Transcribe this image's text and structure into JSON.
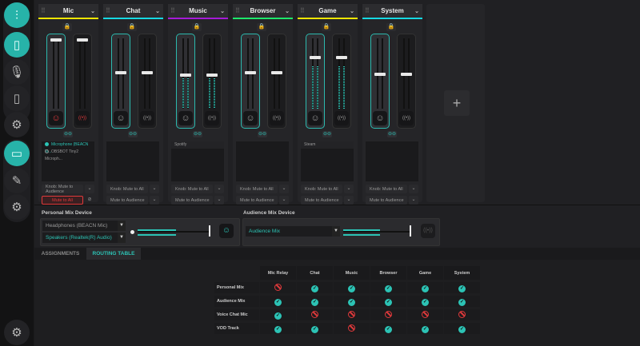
{
  "sidebar": {
    "items": [
      {
        "icon": "mixer-sliders-icon",
        "active": true
      },
      {
        "icon": "device-panel-icon",
        "active": true
      },
      {
        "icon": "mic-rotate-icon",
        "active": false
      },
      {
        "icon": "device-light-icon",
        "active": false
      },
      {
        "icon": "gear-icon",
        "active": false
      },
      {
        "icon": "keyboard-device-icon",
        "active": true
      },
      {
        "icon": "edit-icon",
        "active": false
      },
      {
        "icon": "gear-icon",
        "active": false
      },
      {
        "icon": "settings-gear-icon",
        "active": false
      }
    ]
  },
  "channels": [
    {
      "name": "Mic",
      "color": "#f2e600",
      "personal_level": 0.98,
      "stream_level": 0.98,
      "personal_meter": 0,
      "stream_meter": 0,
      "muted": true,
      "apps": [
        "Microphone (BEACN M...",
        "OBSBOT Tiny2 Microph..."
      ],
      "knob": "Knob: Mute to Audience",
      "mute": "Mute to All"
    },
    {
      "name": "Chat",
      "color": "#16d9e3",
      "personal_level": 0.5,
      "stream_level": 0.5,
      "personal_meter": 0,
      "stream_meter": 0,
      "apps": [],
      "knob": "Knob: Mute to All",
      "mute": "Mute to Audience"
    },
    {
      "name": "Music",
      "color": "#a51bd8",
      "personal_level": 0.47,
      "stream_level": 0.47,
      "personal_meter": 0.43,
      "stream_meter": 0.43,
      "apps": [
        "Spotify"
      ],
      "knob": "Knob: Mute to All",
      "mute": "Mute to Audience"
    },
    {
      "name": "Browser",
      "color": "#1de86a",
      "personal_level": 0.5,
      "stream_level": 0.5,
      "personal_meter": 0,
      "stream_meter": 0,
      "apps": [],
      "knob": "Knob: Mute to All",
      "mute": "Mute to Audience"
    },
    {
      "name": "Game",
      "color": "#f2e600",
      "personal_level": 0.72,
      "stream_level": 0.72,
      "personal_meter": 0.6,
      "stream_meter": 0.6,
      "apps": [
        "Steam"
      ],
      "knob": "Knob: Mute to All",
      "mute": "Mute to Audience"
    },
    {
      "name": "System",
      "color": "#16d9e3",
      "personal_level": 0.48,
      "stream_level": 0.48,
      "personal_meter": 0,
      "stream_meter": 0,
      "apps": [],
      "knob": "Knob: Mute to All",
      "mute": "Mute to Audience"
    }
  ],
  "add_channel": "+",
  "personal_mix": {
    "label": "Personal Mix Device",
    "devices": [
      "Headphones (BEACN Mic)",
      "Speakers (Realtek(R) Audio)"
    ],
    "level": 1.0
  },
  "audience_mix": {
    "label": "Audience Mix Device",
    "device": "Audience Mix",
    "level": 1.0
  },
  "tabs": [
    {
      "label": "ASSIGNMENTS",
      "active": false
    },
    {
      "label": "ROUTING TABLE",
      "active": true
    }
  ],
  "routing": {
    "columns": [
      "Mic Relay",
      "Chat",
      "Music",
      "Browser",
      "Game",
      "System"
    ],
    "rows": [
      {
        "label": "Personal Mix",
        "values": [
          false,
          true,
          true,
          true,
          true,
          true
        ]
      },
      {
        "label": "Audience Mix",
        "values": [
          true,
          true,
          true,
          true,
          true,
          true
        ]
      },
      {
        "label": "Voice Chat Mic",
        "values": [
          true,
          false,
          false,
          false,
          false,
          false
        ]
      },
      {
        "label": "VOD Track",
        "values": [
          true,
          true,
          false,
          true,
          true,
          true
        ]
      }
    ]
  },
  "colors": {
    "accent": "#2cb9ae",
    "danger": "#e0393b"
  }
}
